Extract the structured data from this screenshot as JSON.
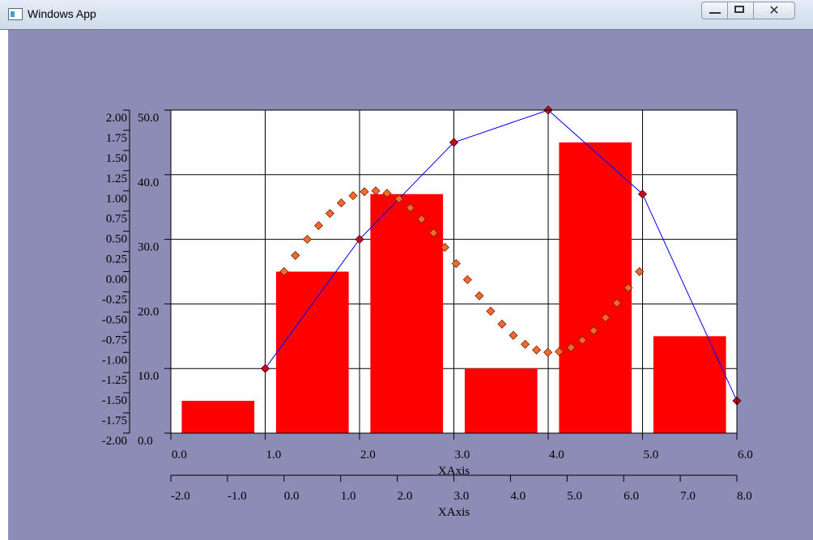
{
  "window": {
    "title": "Windows App"
  },
  "chart_data": {
    "type": "combo",
    "xlabel": "XAxis",
    "x2label": "XAxis",
    "xlim": [
      0,
      6
    ],
    "xticks": [
      {
        "value": 0,
        "label": "0.0"
      },
      {
        "value": 1,
        "label": "1.0"
      },
      {
        "value": 2,
        "label": "2.0"
      },
      {
        "value": 3,
        "label": "3.0"
      },
      {
        "value": 4,
        "label": "4.0"
      },
      {
        "value": 5,
        "label": "5.0"
      },
      {
        "value": 6,
        "label": "6.0"
      }
    ],
    "x2lim": [
      -2,
      8
    ],
    "x2ticks": [
      {
        "value": -2,
        "label": "-2.0"
      },
      {
        "value": -1,
        "label": "-1.0"
      },
      {
        "value": 0,
        "label": "0.0"
      },
      {
        "value": 1,
        "label": "1.0"
      },
      {
        "value": 2,
        "label": "2.0"
      },
      {
        "value": 3,
        "label": "3.0"
      },
      {
        "value": 4,
        "label": "4.0"
      },
      {
        "value": 5,
        "label": "5.0"
      },
      {
        "value": 6,
        "label": "6.0"
      },
      {
        "value": 7,
        "label": "7.0"
      },
      {
        "value": 8,
        "label": "8.0"
      }
    ],
    "ylim": [
      0,
      50
    ],
    "yticks": [
      {
        "value": 0,
        "label": "0.0"
      },
      {
        "value": 10,
        "label": "10.0"
      },
      {
        "value": 20,
        "label": "20.0"
      },
      {
        "value": 30,
        "label": "30.0"
      },
      {
        "value": 40,
        "label": "40.0"
      },
      {
        "value": 50,
        "label": "50.0"
      }
    ],
    "y2lim": [
      -2,
      2
    ],
    "y2ticks": [
      {
        "value": -2,
        "label": "-2.00"
      },
      {
        "value": -1.75,
        "label": "-1.75"
      },
      {
        "value": -1.5,
        "label": "-1.50"
      },
      {
        "value": -1.25,
        "label": "-1.25"
      },
      {
        "value": -1,
        "label": "-1.00"
      },
      {
        "value": -0.75,
        "label": "-0.75"
      },
      {
        "value": -0.5,
        "label": "-0.50"
      },
      {
        "value": -0.25,
        "label": "-0.25"
      },
      {
        "value": 0,
        "label": "0.00"
      },
      {
        "value": 0.25,
        "label": "0.25"
      },
      {
        "value": 0.5,
        "label": "0.50"
      },
      {
        "value": 0.75,
        "label": "0.75"
      },
      {
        "value": 1,
        "label": "1.00"
      },
      {
        "value": 1.25,
        "label": "1.25"
      },
      {
        "value": 1.5,
        "label": "1.50"
      },
      {
        "value": 1.75,
        "label": "1.75"
      },
      {
        "value": 2,
        "label": "2.00"
      }
    ],
    "grid": true,
    "series": [
      {
        "type": "bar",
        "color": "#ff0000",
        "x": [
          0.5,
          1.5,
          2.5,
          3.5,
          4.5,
          5.5
        ],
        "values": [
          5,
          25,
          37,
          10,
          45,
          15
        ]
      },
      {
        "type": "line",
        "color": "#0000ff",
        "marker_color": "#cc0022",
        "x": [
          1,
          2,
          3,
          4,
          5,
          6
        ],
        "values": [
          10,
          30,
          45,
          50,
          37,
          5
        ]
      },
      {
        "type": "scatter",
        "color": "#f26a2e",
        "axis": "y2",
        "xaxis": "x2",
        "x": [
          0,
          0.2,
          0.41,
          0.61,
          0.81,
          1.01,
          1.22,
          1.42,
          1.62,
          1.82,
          2.03,
          2.23,
          2.43,
          2.64,
          2.84,
          3.04,
          3.24,
          3.45,
          3.65,
          3.85,
          4.05,
          4.26,
          4.46,
          4.66,
          4.86,
          5.07,
          5.27,
          5.47,
          5.68,
          5.88,
          6.08,
          6.28
        ],
        "values": [
          0,
          0.2,
          0.4,
          0.57,
          0.72,
          0.85,
          0.94,
          0.99,
          1,
          0.97,
          0.9,
          0.79,
          0.65,
          0.48,
          0.3,
          0.1,
          -0.1,
          -0.3,
          -0.49,
          -0.65,
          -0.79,
          -0.9,
          -0.97,
          -1,
          -0.99,
          -0.94,
          -0.85,
          -0.73,
          -0.57,
          -0.39,
          -0.2,
          0
        ]
      }
    ]
  }
}
